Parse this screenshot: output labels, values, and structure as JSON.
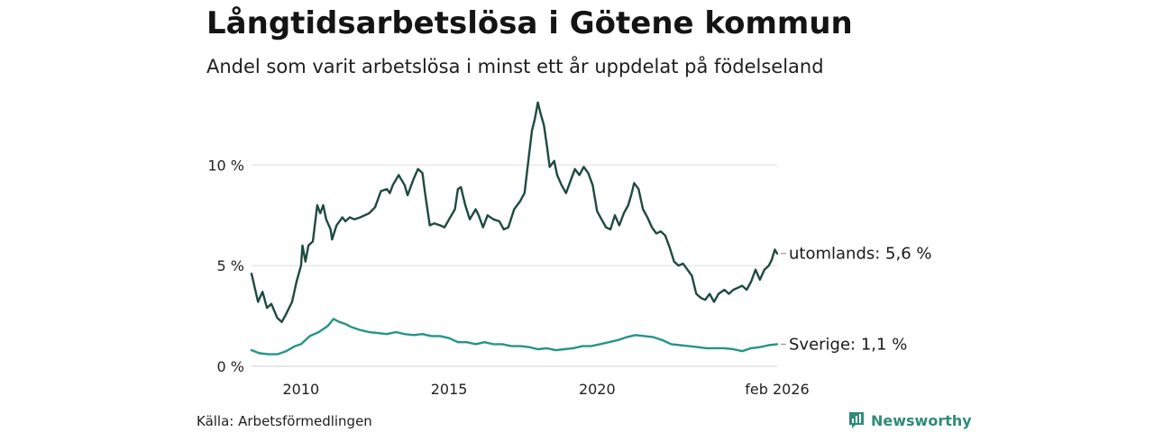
{
  "header": {
    "title": "Långtidsarbetslösa i Götene kommun",
    "subtitle": "Andel som varit arbetslösa i minst ett år uppdelat på födelseland"
  },
  "footer": {
    "source": "Källa: Arbetsförmedlingen",
    "brand": "Newsworthy"
  },
  "colors": {
    "utomlands": "#1e4a40",
    "sverige": "#269488",
    "grid": "#dddddd"
  },
  "chart_data": {
    "type": "line",
    "title": "Långtidsarbetslösa i Götene kommun",
    "subtitle": "Andel som varit arbetslösa i minst ett år uppdelat på födelseland",
    "xlabel": "",
    "ylabel": "",
    "x_range": [
      2008.33,
      2026.08
    ],
    "ylim": [
      0,
      13.5
    ],
    "grid": true,
    "y_ticks": [
      {
        "value": 0,
        "label": "0 %"
      },
      {
        "value": 5,
        "label": "5 %"
      },
      {
        "value": 10,
        "label": "10 %"
      }
    ],
    "x_ticks": [
      {
        "value": 2010,
        "label": "2010"
      },
      {
        "value": 2015,
        "label": "2015"
      },
      {
        "value": 2020,
        "label": "2020"
      },
      {
        "value": 2026.08,
        "label": "feb 2026"
      }
    ],
    "series": [
      {
        "name": "utomlands",
        "end_label": "utomlands: 5,6 %",
        "points": [
          [
            2008.33,
            4.6
          ],
          [
            2008.55,
            3.2
          ],
          [
            2008.7,
            3.7
          ],
          [
            2008.85,
            2.9
          ],
          [
            2009.0,
            3.1
          ],
          [
            2009.2,
            2.4
          ],
          [
            2009.35,
            2.2
          ],
          [
            2009.5,
            2.6
          ],
          [
            2009.7,
            3.2
          ],
          [
            2009.85,
            4.2
          ],
          [
            2010.0,
            5.0
          ],
          [
            2010.05,
            6.0
          ],
          [
            2010.15,
            5.2
          ],
          [
            2010.25,
            6.0
          ],
          [
            2010.4,
            6.2
          ],
          [
            2010.55,
            8.0
          ],
          [
            2010.65,
            7.6
          ],
          [
            2010.75,
            8.0
          ],
          [
            2010.85,
            7.3
          ],
          [
            2011.0,
            6.8
          ],
          [
            2011.05,
            6.3
          ],
          [
            2011.2,
            7.0
          ],
          [
            2011.4,
            7.4
          ],
          [
            2011.5,
            7.2
          ],
          [
            2011.65,
            7.4
          ],
          [
            2011.8,
            7.3
          ],
          [
            2012.0,
            7.4
          ],
          [
            2012.3,
            7.6
          ],
          [
            2012.5,
            7.9
          ],
          [
            2012.7,
            8.7
          ],
          [
            2012.9,
            8.8
          ],
          [
            2013.0,
            8.6
          ],
          [
            2013.1,
            9.0
          ],
          [
            2013.3,
            9.5
          ],
          [
            2013.5,
            9.0
          ],
          [
            2013.6,
            8.5
          ],
          [
            2013.8,
            9.3
          ],
          [
            2013.95,
            9.8
          ],
          [
            2014.1,
            9.6
          ],
          [
            2014.2,
            8.5
          ],
          [
            2014.35,
            7.0
          ],
          [
            2014.5,
            7.1
          ],
          [
            2014.7,
            7.0
          ],
          [
            2014.85,
            6.9
          ],
          [
            2015.0,
            7.3
          ],
          [
            2015.2,
            7.8
          ],
          [
            2015.3,
            8.8
          ],
          [
            2015.4,
            8.9
          ],
          [
            2015.55,
            8.0
          ],
          [
            2015.7,
            7.3
          ],
          [
            2015.9,
            7.8
          ],
          [
            2016.0,
            7.5
          ],
          [
            2016.15,
            6.9
          ],
          [
            2016.3,
            7.5
          ],
          [
            2016.5,
            7.3
          ],
          [
            2016.7,
            7.2
          ],
          [
            2016.85,
            6.8
          ],
          [
            2017.0,
            6.9
          ],
          [
            2017.2,
            7.8
          ],
          [
            2017.4,
            8.2
          ],
          [
            2017.55,
            8.6
          ],
          [
            2017.7,
            10.5
          ],
          [
            2017.8,
            11.7
          ],
          [
            2017.9,
            12.3
          ],
          [
            2018.0,
            13.1
          ],
          [
            2018.1,
            12.5
          ],
          [
            2018.2,
            12.0
          ],
          [
            2018.3,
            11.0
          ],
          [
            2018.4,
            9.9
          ],
          [
            2018.55,
            10.2
          ],
          [
            2018.65,
            9.5
          ],
          [
            2018.8,
            9.0
          ],
          [
            2018.95,
            8.6
          ],
          [
            2019.1,
            9.2
          ],
          [
            2019.25,
            9.8
          ],
          [
            2019.4,
            9.5
          ],
          [
            2019.55,
            9.9
          ],
          [
            2019.7,
            9.6
          ],
          [
            2019.85,
            9.0
          ],
          [
            2020.0,
            7.7
          ],
          [
            2020.15,
            7.3
          ],
          [
            2020.3,
            6.9
          ],
          [
            2020.45,
            6.8
          ],
          [
            2020.6,
            7.5
          ],
          [
            2020.75,
            7.0
          ],
          [
            2020.9,
            7.6
          ],
          [
            2021.05,
            8.0
          ],
          [
            2021.15,
            8.5
          ],
          [
            2021.25,
            9.1
          ],
          [
            2021.4,
            8.8
          ],
          [
            2021.55,
            7.8
          ],
          [
            2021.7,
            7.4
          ],
          [
            2021.85,
            6.9
          ],
          [
            2022.0,
            6.6
          ],
          [
            2022.15,
            6.7
          ],
          [
            2022.3,
            6.5
          ],
          [
            2022.45,
            5.9
          ],
          [
            2022.6,
            5.2
          ],
          [
            2022.75,
            5.0
          ],
          [
            2022.9,
            5.1
          ],
          [
            2023.05,
            4.8
          ],
          [
            2023.2,
            4.5
          ],
          [
            2023.35,
            3.6
          ],
          [
            2023.5,
            3.4
          ],
          [
            2023.65,
            3.3
          ],
          [
            2023.8,
            3.6
          ],
          [
            2023.95,
            3.2
          ],
          [
            2024.1,
            3.6
          ],
          [
            2024.3,
            3.8
          ],
          [
            2024.45,
            3.6
          ],
          [
            2024.6,
            3.8
          ],
          [
            2024.75,
            3.9
          ],
          [
            2024.9,
            4.0
          ],
          [
            2025.05,
            3.8
          ],
          [
            2025.2,
            4.2
          ],
          [
            2025.35,
            4.8
          ],
          [
            2025.5,
            4.3
          ],
          [
            2025.65,
            4.8
          ],
          [
            2025.8,
            5.0
          ],
          [
            2025.9,
            5.3
          ],
          [
            2026.0,
            5.8
          ],
          [
            2026.08,
            5.6
          ]
        ]
      },
      {
        "name": "Sverige",
        "end_label": "Sverige: 1,1 %",
        "points": [
          [
            2008.33,
            0.8
          ],
          [
            2008.6,
            0.65
          ],
          [
            2008.9,
            0.6
          ],
          [
            2009.2,
            0.6
          ],
          [
            2009.5,
            0.75
          ],
          [
            2009.8,
            1.0
          ],
          [
            2010.0,
            1.1
          ],
          [
            2010.3,
            1.5
          ],
          [
            2010.6,
            1.7
          ],
          [
            2010.9,
            2.0
          ],
          [
            2011.1,
            2.35
          ],
          [
            2011.3,
            2.2
          ],
          [
            2011.5,
            2.1
          ],
          [
            2011.7,
            1.95
          ],
          [
            2012.0,
            1.8
          ],
          [
            2012.3,
            1.7
          ],
          [
            2012.6,
            1.65
          ],
          [
            2012.9,
            1.6
          ],
          [
            2013.2,
            1.7
          ],
          [
            2013.5,
            1.6
          ],
          [
            2013.8,
            1.55
          ],
          [
            2014.1,
            1.6
          ],
          [
            2014.4,
            1.5
          ],
          [
            2014.7,
            1.5
          ],
          [
            2015.0,
            1.4
          ],
          [
            2015.3,
            1.2
          ],
          [
            2015.6,
            1.2
          ],
          [
            2015.9,
            1.1
          ],
          [
            2016.2,
            1.2
          ],
          [
            2016.5,
            1.1
          ],
          [
            2016.8,
            1.1
          ],
          [
            2017.1,
            1.0
          ],
          [
            2017.4,
            1.0
          ],
          [
            2017.7,
            0.95
          ],
          [
            2018.0,
            0.85
          ],
          [
            2018.3,
            0.9
          ],
          [
            2018.6,
            0.8
          ],
          [
            2018.9,
            0.85
          ],
          [
            2019.2,
            0.9
          ],
          [
            2019.5,
            1.0
          ],
          [
            2019.8,
            1.0
          ],
          [
            2020.1,
            1.1
          ],
          [
            2020.4,
            1.2
          ],
          [
            2020.7,
            1.3
          ],
          [
            2021.0,
            1.45
          ],
          [
            2021.3,
            1.55
          ],
          [
            2021.6,
            1.5
          ],
          [
            2021.9,
            1.45
          ],
          [
            2022.2,
            1.3
          ],
          [
            2022.5,
            1.1
          ],
          [
            2022.8,
            1.05
          ],
          [
            2023.1,
            1.0
          ],
          [
            2023.4,
            0.95
          ],
          [
            2023.7,
            0.9
          ],
          [
            2024.0,
            0.9
          ],
          [
            2024.3,
            0.9
          ],
          [
            2024.6,
            0.85
          ],
          [
            2024.9,
            0.75
          ],
          [
            2025.2,
            0.9
          ],
          [
            2025.5,
            0.95
          ],
          [
            2025.8,
            1.05
          ],
          [
            2026.08,
            1.1
          ]
        ]
      }
    ]
  }
}
